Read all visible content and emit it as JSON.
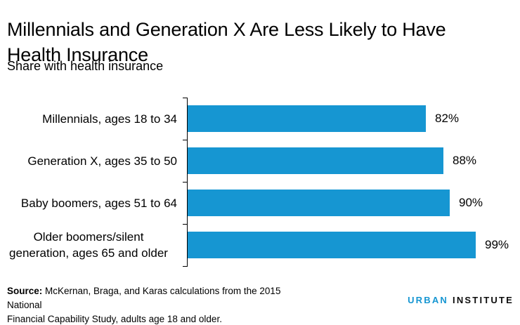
{
  "title": "Millennials and Generation X Are Less Likely to Have\nHealth Insurance",
  "subtitle": "Share with health insurance",
  "chart_data": {
    "type": "bar",
    "orientation": "horizontal",
    "title": "Millennials and Generation X Are Less Likely to Have Health Insurance",
    "subtitle": "Share with health insurance",
    "categories": [
      "Millennials, ages 18 to 34",
      "Generation X, ages 35 to 50",
      "Baby boomers, ages 51 to 64",
      "Older boomers/silent\ngeneration, ages 65 and older"
    ],
    "values": [
      82,
      88,
      90,
      99
    ],
    "value_labels": [
      "82%",
      "88%",
      "90%",
      "99%"
    ],
    "xlim": [
      0,
      100
    ],
    "bar_color": "#1696d2",
    "axis_color": "#000000",
    "grid": false,
    "legend": false
  },
  "source": {
    "label": "Source: ",
    "text": "McKernan, Braga, and Karas calculations from the 2015 National\nFinancial Capability Study, adults age 18 and older."
  },
  "logo": {
    "word1": "URBAN",
    "word2": "INSTITUTE",
    "word1_color": "#1696d2",
    "word2_color": "#0d0d0d"
  }
}
